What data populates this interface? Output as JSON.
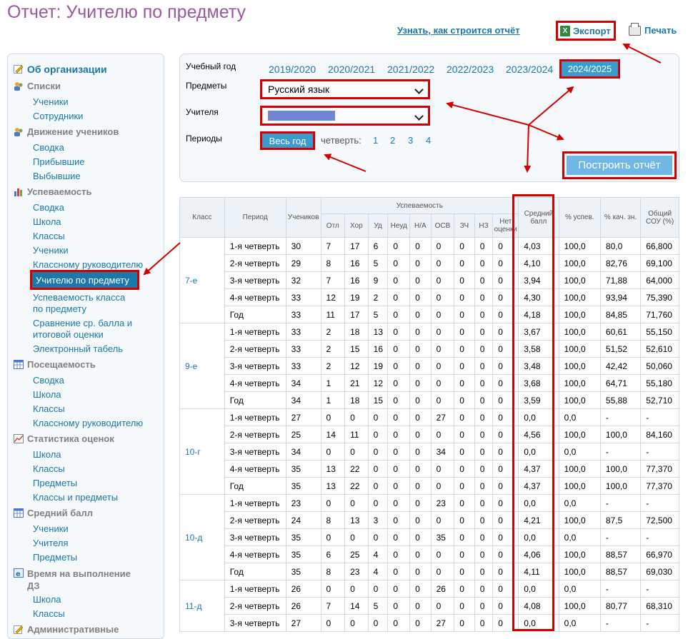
{
  "page": {
    "title": "Отчет: Учителю по предмету",
    "learn_link": "Узнать, как строится отчёт",
    "export_label": "Экспорт",
    "print_label": "Печать"
  },
  "sidebar": {
    "org": "Об организации",
    "sections": [
      {
        "title": "Списки",
        "items": [
          "Ученики",
          "Сотрудники"
        ]
      },
      {
        "title": "Движение учеников",
        "items": [
          "Сводка",
          "Прибывшие",
          "Выбывшие"
        ]
      },
      {
        "title": "Успеваемость",
        "items": [
          "Сводка",
          "Школа",
          "Классы",
          "Ученики",
          "Классному руководителю",
          "Учителю по предмету",
          "Успеваемость класса по предмету",
          "Сравнение ср. балла и итоговой оценки",
          "Электронный табель"
        ]
      },
      {
        "title": "Посещаемость",
        "items": [
          "Сводка",
          "Школа",
          "Классы",
          "Классному руководителю"
        ]
      },
      {
        "title": "Статистика оценок",
        "items": [
          "Школа",
          "Классы",
          "Предметы",
          "Классы и предметы"
        ]
      },
      {
        "title": "Средний балл",
        "items": [
          "Ученики",
          "Учителя",
          "Предметы"
        ]
      },
      {
        "title": "Время на выполнение ДЗ",
        "items": [
          "Школа",
          "Классы"
        ]
      },
      {
        "title": "Административные"
      }
    ],
    "active": "Учителю по предмету",
    "multiline": {
      "a1": "Успеваемость класса",
      "a2": "по предмету",
      "b1": "Сравнение ср. балла и",
      "b2": "итоговой оценки",
      "c1": "Время на выполнение",
      "c2": "ДЗ"
    }
  },
  "filters": {
    "year_label": "Учебный год",
    "years": [
      "2019/2020",
      "2020/2021",
      "2021/2022",
      "2022/2023",
      "2023/2024",
      "2024/2025"
    ],
    "active_year": "2024/2025",
    "subjects_label": "Предметы",
    "subject_value": "Русский язык",
    "teachers_label": "Учителя",
    "periods_label": "Периоды",
    "period_active": "Весь год",
    "quarter_label": "четверть:",
    "quarters": [
      "1",
      "2",
      "3",
      "4"
    ],
    "build_button": "Построить отчёт"
  },
  "table": {
    "headers": {
      "class": "Класс",
      "period": "Период",
      "students": "Учеников",
      "performance": "Успеваемость",
      "otl": "Отл",
      "hor": "Хор",
      "ud": "Уд",
      "neud": "Неуд",
      "na": "Н/А",
      "osv": "ОСВ",
      "zch": "ЗЧ",
      "nz": "НЗ",
      "net1": "Нет",
      "net2": "оценки",
      "avg1": "Средний",
      "avg2": "балл",
      "pct_usp": "% успев.",
      "pct_kach": "% кач. зн.",
      "sou1": "Общий",
      "sou2": "СОУ (%)"
    },
    "groups": [
      {
        "class": "7-е",
        "rows": [
          [
            "1-я четверть",
            "30",
            "7",
            "17",
            "6",
            "0",
            "0",
            "0",
            "0",
            "0",
            "0",
            "4,03",
            "100,0",
            "80,0",
            "66,800"
          ],
          [
            "2-я четверть",
            "29",
            "8",
            "16",
            "5",
            "0",
            "0",
            "0",
            "0",
            "0",
            "0",
            "4,10",
            "100,0",
            "82,76",
            "69,100"
          ],
          [
            "3-я четверть",
            "32",
            "7",
            "16",
            "9",
            "0",
            "0",
            "0",
            "0",
            "0",
            "0",
            "3,94",
            "100,0",
            "71,88",
            "64,000"
          ],
          [
            "4-я четверть",
            "33",
            "12",
            "19",
            "2",
            "0",
            "0",
            "0",
            "0",
            "0",
            "0",
            "4,30",
            "100,0",
            "93,94",
            "75,390"
          ],
          [
            "Год",
            "33",
            "11",
            "17",
            "5",
            "0",
            "0",
            "0",
            "0",
            "0",
            "0",
            "4,18",
            "100,0",
            "84,85",
            "71,760"
          ]
        ]
      },
      {
        "class": "9-е",
        "rows": [
          [
            "1-я четверть",
            "33",
            "2",
            "18",
            "13",
            "0",
            "0",
            "0",
            "0",
            "0",
            "0",
            "3,67",
            "100,0",
            "60,61",
            "55,150"
          ],
          [
            "2-я четверть",
            "33",
            "2",
            "15",
            "16",
            "0",
            "0",
            "0",
            "0",
            "0",
            "0",
            "3,58",
            "100,0",
            "51,52",
            "52,610"
          ],
          [
            "3-я четверть",
            "33",
            "2",
            "12",
            "19",
            "0",
            "0",
            "0",
            "0",
            "0",
            "0",
            "3,48",
            "100,0",
            "42,42",
            "50,060"
          ],
          [
            "4-я четверть",
            "34",
            "1",
            "21",
            "12",
            "0",
            "0",
            "0",
            "0",
            "0",
            "0",
            "3,68",
            "100,0",
            "64,71",
            "55,180"
          ],
          [
            "Год",
            "34",
            "1",
            "18",
            "15",
            "0",
            "0",
            "0",
            "0",
            "0",
            "0",
            "3,59",
            "100,0",
            "55,88",
            "52,710"
          ]
        ]
      },
      {
        "class": "10-г",
        "rows": [
          [
            "1-я четверть",
            "27",
            "0",
            "0",
            "0",
            "0",
            "0",
            "27",
            "0",
            "0",
            "0",
            "0,0",
            "0,0",
            "-",
            "-"
          ],
          [
            "2-я четверть",
            "25",
            "14",
            "11",
            "0",
            "0",
            "0",
            "0",
            "0",
            "0",
            "0",
            "4,56",
            "100,0",
            "100,0",
            "84,160"
          ],
          [
            "3-я четверть",
            "34",
            "0",
            "0",
            "0",
            "0",
            "0",
            "34",
            "0",
            "0",
            "0",
            "0,0",
            "0,0",
            "-",
            "-"
          ],
          [
            "4-я четверть",
            "35",
            "13",
            "22",
            "0",
            "0",
            "0",
            "0",
            "0",
            "0",
            "0",
            "4,37",
            "100,0",
            "100,0",
            "77,370"
          ],
          [
            "Год",
            "35",
            "13",
            "22",
            "0",
            "0",
            "0",
            "0",
            "0",
            "0",
            "0",
            "4,37",
            "100,0",
            "100,0",
            "77,370"
          ]
        ]
      },
      {
        "class": "10-д",
        "rows": [
          [
            "1-я четверть",
            "23",
            "0",
            "0",
            "0",
            "0",
            "0",
            "23",
            "0",
            "0",
            "0",
            "0,0",
            "0,0",
            "-",
            "-"
          ],
          [
            "2-я четверть",
            "24",
            "8",
            "13",
            "3",
            "0",
            "0",
            "0",
            "0",
            "0",
            "0",
            "4,21",
            "100,0",
            "87,5",
            "72,500"
          ],
          [
            "3-я четверть",
            "35",
            "0",
            "0",
            "0",
            "0",
            "0",
            "35",
            "0",
            "0",
            "0",
            "0,0",
            "0,0",
            "-",
            "-"
          ],
          [
            "4-я четверть",
            "35",
            "6",
            "25",
            "4",
            "0",
            "0",
            "0",
            "0",
            "0",
            "0",
            "4,06",
            "100,0",
            "88,57",
            "66,970"
          ],
          [
            "Год",
            "35",
            "8",
            "23",
            "4",
            "0",
            "0",
            "0",
            "0",
            "0",
            "0",
            "4,11",
            "100,0",
            "88,57",
            "69,030"
          ]
        ]
      },
      {
        "class": "11-д",
        "rows": [
          [
            "1-я четверть",
            "26",
            "0",
            "0",
            "0",
            "0",
            "0",
            "26",
            "0",
            "0",
            "0",
            "0,0",
            "0,0",
            "-",
            "-"
          ],
          [
            "2-я четверть",
            "26",
            "7",
            "14",
            "5",
            "0",
            "0",
            "0",
            "0",
            "0",
            "0",
            "4,08",
            "100,0",
            "80,77",
            "68,310"
          ],
          [
            "3-я четверть",
            "27",
            "0",
            "0",
            "0",
            "0",
            "0",
            "27",
            "0",
            "0",
            "0",
            "0,0",
            "0,0",
            "-",
            "-"
          ]
        ]
      }
    ]
  },
  "colors": {
    "accent": "#1b78a8",
    "highlight": "#d40000",
    "title": "#9a5a9e"
  }
}
